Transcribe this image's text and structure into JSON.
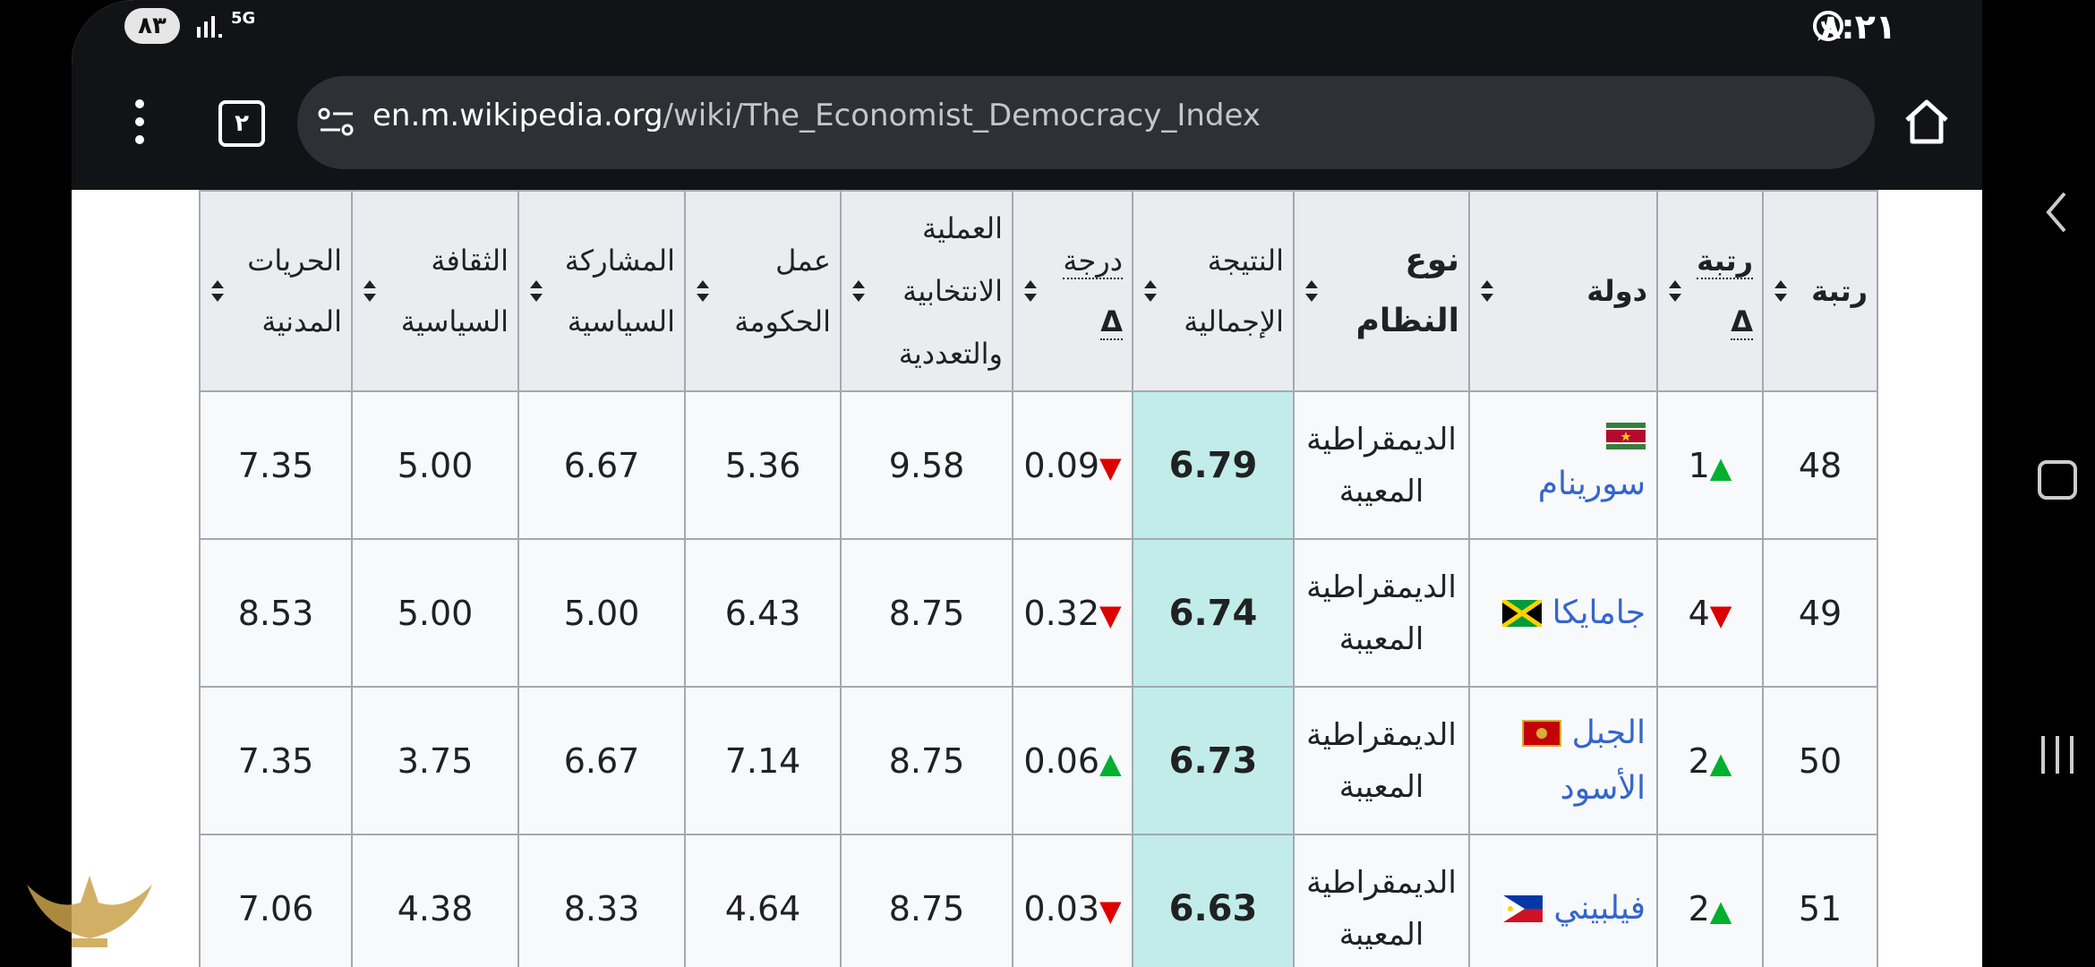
{
  "status_bar": {
    "battery": "٨٣",
    "network": "5G",
    "time": "٨:٢١"
  },
  "browser": {
    "tabs_count": "٢",
    "url_domain": "en.m.wikipedia.org",
    "url_path": "/wiki/The_Economist_Democracy_Index"
  },
  "table": {
    "headers": {
      "rank": "رتبة",
      "rank_change_1": "رتبة",
      "rank_change_2": "Δ",
      "country": "دولة",
      "regime_1": "نوع",
      "regime_2": "النظام",
      "overall_1": "النتيجة",
      "overall_2": "الإجمالية",
      "score_change_1": "درجة",
      "score_change_2": "Δ",
      "electoral_1": "العملية",
      "electoral_2": "الانتخابية",
      "electoral_3": "والتعددية",
      "government_1": "عمل",
      "government_2": "الحكومة",
      "participation_1": "المشاركة",
      "participation_2": "السياسية",
      "culture_1": "الثقافة",
      "culture_2": "السياسية",
      "liberties_1": "الحريات",
      "liberties_2": "المدنية"
    },
    "rows": [
      {
        "rank": "48",
        "rank_change": "1",
        "rank_dir": "▲",
        "country_1": "سورينام",
        "country_2": "",
        "regime_1": "الديمقراطية",
        "regime_2": "المعيبة",
        "overall": "6.79",
        "score_change": "0.09",
        "score_dir": "▼",
        "electoral": "9.58",
        "government": "5.36",
        "participation": "6.67",
        "culture": "5.00",
        "liberties": "7.35"
      },
      {
        "rank": "49",
        "rank_change": "4",
        "rank_dir": "▼",
        "country_1": "جامايكا",
        "country_2": "",
        "regime_1": "الديمقراطية",
        "regime_2": "المعيبة",
        "overall": "6.74",
        "score_change": "0.32",
        "score_dir": "▼",
        "electoral": "8.75",
        "government": "6.43",
        "participation": "5.00",
        "culture": "5.00",
        "liberties": "8.53"
      },
      {
        "rank": "50",
        "rank_change": "2",
        "rank_dir": "▲",
        "country_1": "الجبل",
        "country_2": "الأسود",
        "regime_1": "الديمقراطية",
        "regime_2": "المعيبة",
        "overall": "6.73",
        "score_change": "0.06",
        "score_dir": "▲",
        "electoral": "8.75",
        "government": "7.14",
        "participation": "6.67",
        "culture": "3.75",
        "liberties": "7.35"
      },
      {
        "rank": "51",
        "rank_change": "2",
        "rank_dir": "▲",
        "country_1": "فيلبيني",
        "country_2": "",
        "regime_1": "الديمقراطية",
        "regime_2": "المعيبة",
        "overall": "6.63",
        "score_change": "0.03",
        "score_dir": "▼",
        "electoral": "8.75",
        "government": "4.64",
        "participation": "8.33",
        "culture": "4.38",
        "liberties": "7.06"
      }
    ]
  },
  "icons": [
    "whatsapp-icon",
    "signal-icon",
    "menu-dots-icon",
    "tabs-icon",
    "site-settings-icon",
    "home-icon",
    "sort-icon",
    "back-icon",
    "recents-icon",
    "flag-suriname-icon",
    "flag-jamaica-icon",
    "flag-montenegro-icon",
    "flag-philippines-icon"
  ],
  "colors": {
    "overall_highlight": "#c2ece9",
    "link": "#3366cc",
    "up": "#00b02e",
    "down": "#dd0000",
    "header_bg": "#eaecf0"
  }
}
